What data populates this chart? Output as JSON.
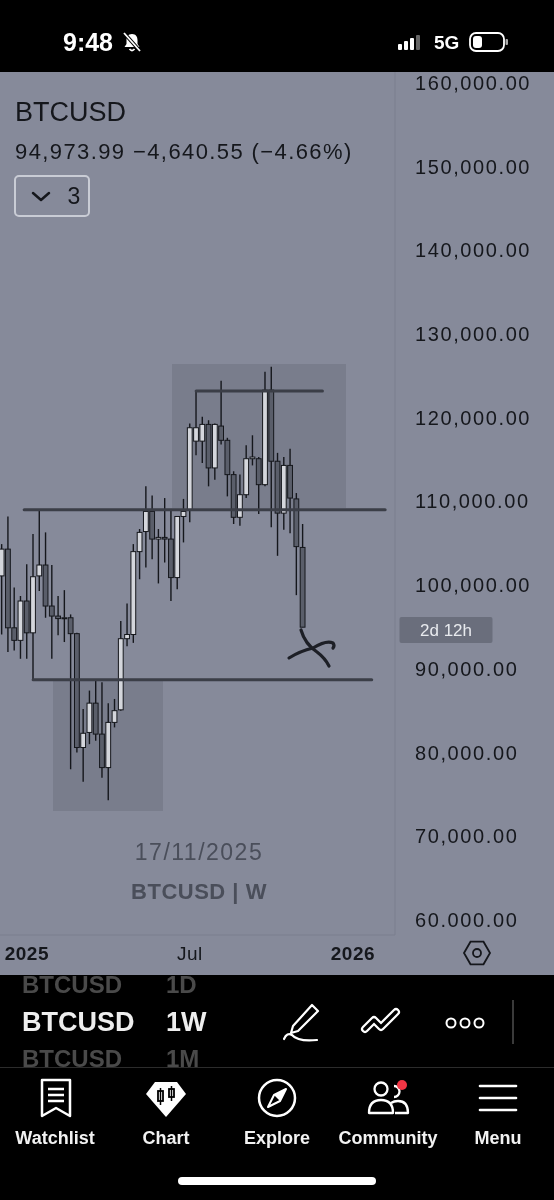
{
  "chart_data": {
    "type": "candlestick",
    "title": "BTCUSD",
    "subtitle": "94,973.99 −4,640.55 (−4.66%)",
    "x": [
      "2024-12-09",
      "2024-12-16",
      "2024-12-23",
      "2024-12-30",
      "2025-01-06",
      "2025-01-13",
      "2025-01-20",
      "2025-01-27",
      "2025-02-03",
      "2025-02-10",
      "2025-02-17",
      "2025-02-24",
      "2025-03-03",
      "2025-03-10",
      "2025-03-17",
      "2025-03-24",
      "2025-03-31",
      "2025-04-07",
      "2025-04-14",
      "2025-04-21",
      "2025-04-28",
      "2025-05-05",
      "2025-05-12",
      "2025-05-19",
      "2025-05-26",
      "2025-06-02",
      "2025-06-09",
      "2025-06-16",
      "2025-06-23",
      "2025-06-30",
      "2025-07-07",
      "2025-07-14",
      "2025-07-21",
      "2025-07-28",
      "2025-08-04",
      "2025-08-11",
      "2025-08-18",
      "2025-08-25",
      "2025-09-01",
      "2025-09-08",
      "2025-09-15",
      "2025-09-22",
      "2025-09-29",
      "2025-10-06",
      "2025-10-13",
      "2025-10-20",
      "2025-10-27",
      "2025-11-03",
      "2025-11-10"
    ],
    "ohlc": [
      [
        101100,
        104900,
        94100,
        104300
      ],
      [
        104300,
        108200,
        92000,
        94900
      ],
      [
        94900,
        99700,
        92200,
        93400
      ],
      [
        93400,
        98700,
        91200,
        98100
      ],
      [
        98100,
        102500,
        91200,
        94300
      ],
      [
        94300,
        106100,
        88700,
        101000
      ],
      [
        101100,
        109100,
        99300,
        102400
      ],
      [
        102400,
        106300,
        96100,
        97500
      ],
      [
        97500,
        102400,
        91200,
        96300
      ],
      [
        96300,
        98700,
        94000,
        96000
      ],
      [
        96000,
        99400,
        93200,
        96100
      ],
      [
        96100,
        96500,
        78000,
        94200
      ],
      [
        94200,
        94300,
        80000,
        80600
      ],
      [
        80600,
        85200,
        76500,
        82300
      ],
      [
        82400,
        87400,
        81000,
        85900
      ],
      [
        85900,
        88600,
        81400,
        82200
      ],
      [
        82200,
        88400,
        77000,
        78200
      ],
      [
        78200,
        85900,
        74300,
        83600
      ],
      [
        83600,
        86400,
        83000,
        85000
      ],
      [
        85100,
        95700,
        85000,
        93600
      ],
      [
        93600,
        97800,
        92700,
        94100
      ],
      [
        94100,
        104900,
        93100,
        104000
      ],
      [
        104000,
        106700,
        100700,
        106300
      ],
      [
        106400,
        111800,
        102100,
        108800
      ],
      [
        108800,
        110700,
        103100,
        105500
      ],
      [
        105500,
        106700,
        100200,
        105700
      ],
      [
        105700,
        110400,
        102700,
        105500
      ],
      [
        105500,
        108900,
        98100,
        100900
      ],
      [
        100900,
        108200,
        99500,
        108200
      ],
      [
        108200,
        110300,
        105100,
        108800
      ],
      [
        109000,
        119300,
        107500,
        118800
      ],
      [
        117200,
        123200,
        115500,
        118800
      ],
      [
        117200,
        120100,
        114600,
        119200
      ],
      [
        119200,
        119700,
        111800,
        114000
      ],
      [
        114000,
        119300,
        112600,
        119200
      ],
      [
        119000,
        124400,
        116800,
        117300
      ],
      [
        117300,
        117600,
        110600,
        113200
      ],
      [
        113200,
        113600,
        107300,
        108100
      ],
      [
        108100,
        113200,
        107100,
        110800
      ],
      [
        110800,
        116700,
        110400,
        115100
      ],
      [
        115100,
        117900,
        114300,
        115300
      ],
      [
        115100,
        115300,
        108500,
        112000
      ],
      [
        112000,
        125500,
        111800,
        123300
      ],
      [
        123300,
        126100,
        106900,
        114800
      ],
      [
        114800,
        115800,
        103500,
        108600
      ],
      [
        108600,
        115300,
        106600,
        114300
      ],
      [
        114300,
        116300,
        106200,
        110400
      ],
      [
        110300,
        111000,
        98800,
        104600
      ],
      [
        104500,
        107300,
        94973.99,
        94973.99
      ]
    ],
    "colors": [
      "#d4d6dc",
      "#5a5e6a",
      "#5a5e6a",
      "#d4d6dc",
      "#5a5e6a",
      "#d4d6dc",
      "#d4d6dc",
      "#5a5e6a",
      "#5a5e6a",
      "#5a5e6a",
      "#d4d6dc",
      "#5a5e6a",
      "#5a5e6a",
      "#d4d6dc",
      "#d4d6dc",
      "#5a5e6a",
      "#5a5e6a",
      "#d4d6dc",
      "#d4d6dc",
      "#d4d6dc",
      "#d4d6dc",
      "#d4d6dc",
      "#d4d6dc",
      "#d4d6dc",
      "#5a5e6a",
      "#d4d6dc",
      "#5a5e6a",
      "#5a5e6a",
      "#d4d6dc",
      "#d4d6dc",
      "#d4d6dc",
      "#d4d6dc",
      "#d4d6dc",
      "#5a5e6a",
      "#d4d6dc",
      "#5a5e6a",
      "#5a5e6a",
      "#5a5e6a",
      "#d4d6dc",
      "#d4d6dc",
      "#d4d6dc",
      "#5a5e6a",
      "#d4d6dc",
      "#5a5e6a",
      "#5a5e6a",
      "#d4d6dc",
      "#5a5e6a",
      "#5a5e6a",
      "#5a5e6a"
    ],
    "series": [
      {
        "type": "line",
        "x": [
          "2025-01-03",
          "2026-02-10"
        ],
        "values": [
          109000,
          109000
        ],
        "color": "#3b3e47"
      },
      {
        "type": "line",
        "x": [
          "2025-07-14",
          "2025-12-02"
        ],
        "values": [
          123200,
          123200
        ],
        "color": "#3b3e47"
      },
      {
        "type": "line",
        "x": [
          "2025-01-13",
          "2026-01-26"
        ],
        "values": [
          88700,
          88700
        ],
        "color": "#3b3e47"
      }
    ],
    "xlim": [
      "2024-12-07",
      "2026-02-21"
    ],
    "xticks": [
      {
        "value": "2025-01-06",
        "label": "2025"
      },
      {
        "value": "2025-07-07",
        "label": "Jul"
      },
      {
        "value": "2026-01-05",
        "label": "2026"
      }
    ],
    "ylim": [
      58200,
      161300
    ],
    "yticks": [
      {
        "value": 60000,
        "label": "60.000.00"
      },
      {
        "value": 70000,
        "label": "70,000.00"
      },
      {
        "value": 80000,
        "label": "80,000.00"
      },
      {
        "value": 90000,
        "label": "90,000.00"
      },
      {
        "value": 100000,
        "label": "100,000.00"
      },
      {
        "value": 110000,
        "label": "110,000.00"
      },
      {
        "value": 120000,
        "label": "120,000.00"
      },
      {
        "value": 130000,
        "label": "130,000.00"
      },
      {
        "value": 140000,
        "label": "140,000.00"
      },
      {
        "value": 150000,
        "label": "150,000.00"
      },
      {
        "value": 160000,
        "label": "160,000.00"
      }
    ],
    "annotations": [
      "3",
      "2d 12h",
      "17/11/2025",
      "BTCUSD | W",
      "9:48",
      "5G",
      "BTCUSD",
      "1D",
      "BTCUSD",
      "1W",
      "BTCUSD",
      "1M",
      "Watchlist",
      "Chart",
      "Explore",
      "Community",
      "Menu"
    ]
  }
}
